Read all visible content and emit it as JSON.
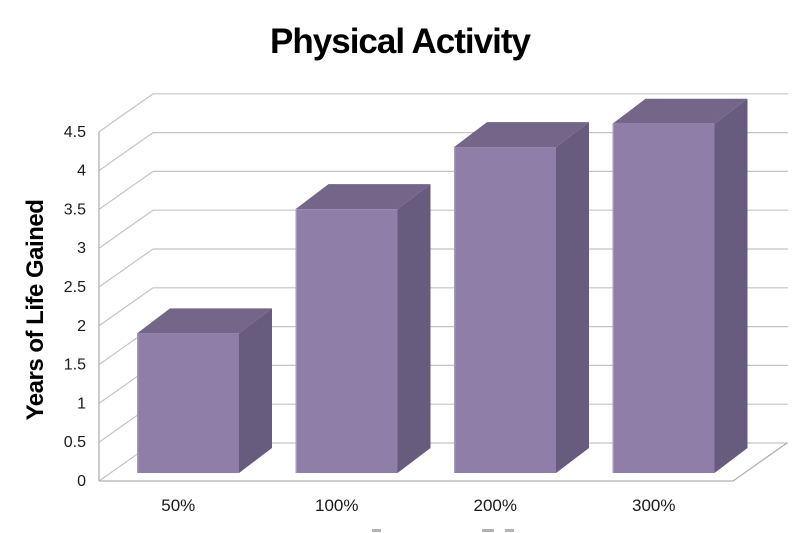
{
  "title": "Physical Activity",
  "chart_data": {
    "type": "bar",
    "projection": "3d-column",
    "title": "Physical Activity",
    "xlabel": "",
    "ylabel": "Years of Life Gained",
    "categories": [
      "50%",
      "100%",
      "200%",
      "300%"
    ],
    "values": [
      1.8,
      3.4,
      4.2,
      4.5
    ],
    "ylim": [
      0,
      4.5
    ],
    "ytick_step": 0.5,
    "ytick_labels": [
      "0",
      "0.5",
      "1",
      "1.5",
      "2",
      "2.5",
      "3",
      "3.5",
      "4",
      "4.5"
    ],
    "grid": true,
    "legend": false,
    "colors": {
      "bar_front": "#8E7EA8",
      "bar_side": "#675B7E",
      "bar_top": "#746689",
      "bar_edge_highlight": "#A79ABD",
      "gridline": "#C5C2C9",
      "axis_line": "#B2AEB7",
      "text": "#1A1A1A",
      "title_text": "#000000"
    }
  }
}
